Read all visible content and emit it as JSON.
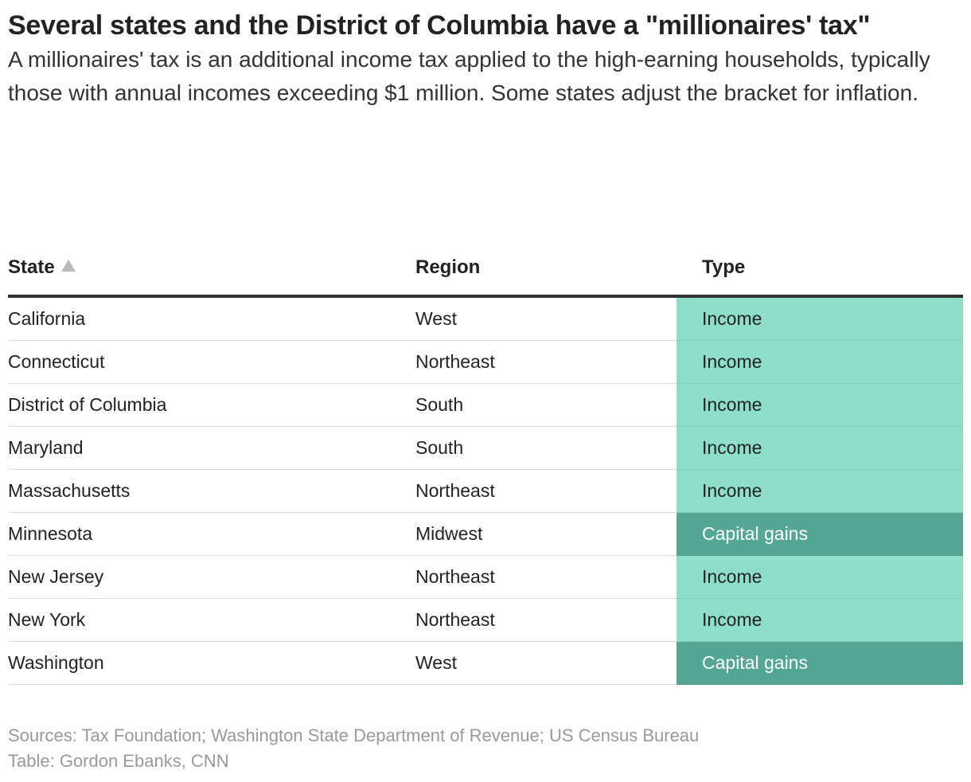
{
  "header": {
    "title": "Several states and the District of Columbia have a \"millionaires' tax\"",
    "subtitle": "A millionaires' tax is an additional income tax applied to the high-earning households, typically those with annual incomes exceeding $1 million. Some states adjust the bracket for inflation."
  },
  "table": {
    "columns": [
      "State",
      "Region",
      "Type"
    ],
    "rows": [
      {
        "state": "California",
        "region": "West",
        "type": "Income",
        "fill": "#8ddfcb",
        "text_color": "#222222"
      },
      {
        "state": "Connecticut",
        "region": "Northeast",
        "type": "Income",
        "fill": "#8ddfcb",
        "text_color": "#222222"
      },
      {
        "state": "District of Columbia",
        "region": "South",
        "type": "Income",
        "fill": "#8ddfcb",
        "text_color": "#222222"
      },
      {
        "state": "Maryland",
        "region": "South",
        "type": "Income",
        "fill": "#8ddfcb",
        "text_color": "#222222"
      },
      {
        "state": "Massachusetts",
        "region": "Northeast",
        "type": "Income",
        "fill": "#8ddfcb",
        "text_color": "#222222"
      },
      {
        "state": "Minnesota",
        "region": "Midwest",
        "type": "Capital gains",
        "fill": "#54a797",
        "text_color": "#ffffff"
      },
      {
        "state": "New Jersey",
        "region": "Northeast",
        "type": "Income",
        "fill": "#8ddfcb",
        "text_color": "#222222"
      },
      {
        "state": "New York",
        "region": "Northeast",
        "type": "Income",
        "fill": "#8ddfcb",
        "text_color": "#222222"
      },
      {
        "state": "Washington",
        "region": "West",
        "type": "Capital gains",
        "fill": "#54a797",
        "text_color": "#ffffff"
      }
    ]
  },
  "footer": {
    "sources": "Sources: Tax Foundation; Washington State Department of Revenue; US Census Bureau",
    "credit": "Table: Gordon Ebanks, CNN"
  }
}
